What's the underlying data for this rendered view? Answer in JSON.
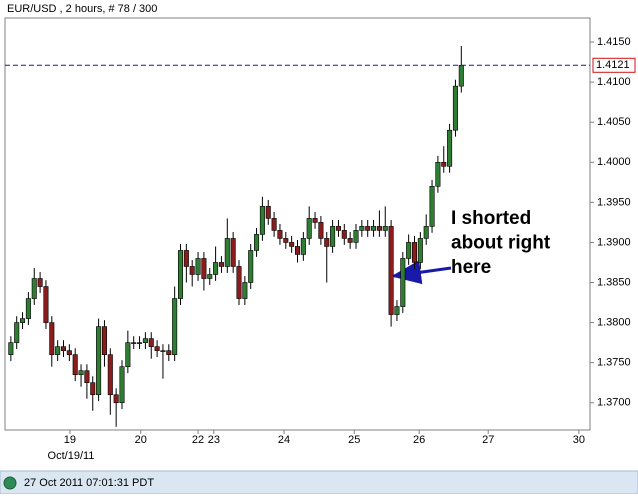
{
  "chart_data": {
    "type": "candlestick",
    "title": "EUR/USD , 2 hours, # 78 / 300",
    "open": [
      1.376,
      1.3775,
      1.38,
      1.3805,
      1.383,
      1.3855,
      1.3845,
      1.38,
      1.376,
      1.377,
      1.3765,
      1.376,
      1.3735,
      1.374,
      1.3725,
      1.371,
      1.3795,
      1.376,
      1.371,
      1.37,
      1.3745,
      1.3775,
      1.3775,
      1.3775,
      1.378,
      1.377,
      1.3765,
      1.3765,
      1.376,
      1.383,
      1.389,
      1.387,
      1.386,
      1.388,
      1.3855,
      1.386,
      1.3875,
      1.387,
      1.3905,
      1.387,
      1.383,
      1.385,
      1.389,
      1.391,
      1.3945,
      1.393,
      1.3915,
      1.3905,
      1.39,
      1.3895,
      1.3885,
      1.3905,
      1.393,
      1.3925,
      1.3905,
      1.3895,
      1.392,
      1.3915,
      1.3905,
      1.39,
      1.3915,
      1.392,
      1.3915,
      1.392,
      1.3915,
      1.392,
      1.381,
      1.382,
      1.388,
      1.39,
      1.3875,
      1.3905,
      1.392,
      1.397,
      1.4,
      1.3995,
      1.404,
      1.4095
    ],
    "high": [
      1.3783,
      1.3808,
      1.3813,
      1.3838,
      1.3868,
      1.3863,
      1.3853,
      1.3808,
      1.3778,
      1.3778,
      1.3773,
      1.3768,
      1.3748,
      1.3748,
      1.3733,
      1.3805,
      1.3803,
      1.3768,
      1.3718,
      1.3753,
      1.379,
      1.3783,
      1.3783,
      1.3788,
      1.3788,
      1.3778,
      1.3773,
      1.3773,
      1.3845,
      1.3898,
      1.3898,
      1.3878,
      1.3888,
      1.3888,
      1.3868,
      1.3895,
      1.3883,
      1.393,
      1.3913,
      1.3878,
      1.3858,
      1.3898,
      1.3918,
      1.3957,
      1.3953,
      1.3938,
      1.3923,
      1.3913,
      1.3908,
      1.3903,
      1.3913,
      1.3945,
      1.3938,
      1.3933,
      1.3913,
      1.3928,
      1.3928,
      1.3923,
      1.3913,
      1.3923,
      1.3928,
      1.3928,
      1.3928,
      1.394,
      1.3945,
      1.3928,
      1.3828,
      1.3888,
      1.391,
      1.3908,
      1.3913,
      1.3935,
      1.3978,
      1.4008,
      1.402,
      1.4048,
      1.4103,
      1.4145
    ],
    "low": [
      1.3752,
      1.3767,
      1.3792,
      1.3797,
      1.3822,
      1.3837,
      1.3792,
      1.3745,
      1.3752,
      1.3757,
      1.3752,
      1.3727,
      1.372,
      1.3705,
      1.369,
      1.3702,
      1.3745,
      1.3685,
      1.367,
      1.3692,
      1.3737,
      1.3767,
      1.3767,
      1.3767,
      1.3755,
      1.3757,
      1.373,
      1.3752,
      1.3752,
      1.3822,
      1.385,
      1.3845,
      1.3852,
      1.384,
      1.3847,
      1.3852,
      1.3862,
      1.3862,
      1.3862,
      1.3822,
      1.3822,
      1.3842,
      1.3882,
      1.3902,
      1.3922,
      1.3907,
      1.3897,
      1.3892,
      1.3887,
      1.3875,
      1.3877,
      1.3897,
      1.3917,
      1.3897,
      1.385,
      1.3887,
      1.3907,
      1.3897,
      1.3892,
      1.3892,
      1.3907,
      1.3907,
      1.3907,
      1.3907,
      1.3907,
      1.3795,
      1.3802,
      1.3812,
      1.3872,
      1.3867,
      1.3867,
      1.3897,
      1.3912,
      1.3962,
      1.3987,
      1.3987,
      1.4032,
      1.4087
    ],
    "close": [
      1.3775,
      1.38,
      1.3805,
      1.383,
      1.3855,
      1.3845,
      1.38,
      1.376,
      1.377,
      1.3765,
      1.376,
      1.3735,
      1.374,
      1.3725,
      1.371,
      1.3795,
      1.376,
      1.371,
      1.37,
      1.3745,
      1.3775,
      1.3775,
      1.3775,
      1.378,
      1.377,
      1.3765,
      1.3765,
      1.376,
      1.383,
      1.389,
      1.387,
      1.386,
      1.388,
      1.3855,
      1.386,
      1.3875,
      1.387,
      1.3905,
      1.387,
      1.383,
      1.385,
      1.389,
      1.391,
      1.3945,
      1.393,
      1.3915,
      1.3905,
      1.39,
      1.3895,
      1.3885,
      1.3905,
      1.393,
      1.3925,
      1.3905,
      1.3895,
      1.392,
      1.3915,
      1.3905,
      1.39,
      1.3915,
      1.392,
      1.3915,
      1.392,
      1.3915,
      1.392,
      1.381,
      1.382,
      1.388,
      1.39,
      1.3875,
      1.3905,
      1.392,
      1.397,
      1.4,
      1.3995,
      1.404,
      1.4095,
      1.4121
    ],
    "up_color": "#2f7d32",
    "down_color": "#8b1c1c",
    "xlim": [
      0,
      100
    ],
    "xticks": [
      {
        "value": 11.1,
        "label": "19"
      },
      {
        "value": 23.2,
        "label": "20"
      },
      {
        "value": 33.0,
        "label": "22"
      },
      {
        "value": 35.7,
        "label": "23"
      },
      {
        "value": 47.7,
        "label": "24"
      },
      {
        "value": 59.7,
        "label": "25"
      },
      {
        "value": 70.8,
        "label": "26"
      },
      {
        "value": 82.6,
        "label": "27"
      },
      {
        "value": 98.1,
        "label": "30"
      }
    ],
    "x_date_label": "Oct/19/11",
    "ylim": [
      1.3666,
      1.418
    ],
    "yticks": [
      {
        "value": 1.37,
        "label": "1.3700"
      },
      {
        "value": 1.375,
        "label": "1.3750"
      },
      {
        "value": 1.38,
        "label": "1.3800"
      },
      {
        "value": 1.385,
        "label": "1.3850"
      },
      {
        "value": 1.39,
        "label": "1.3900"
      },
      {
        "value": 1.395,
        "label": "1.3950"
      },
      {
        "value": 1.4,
        "label": "1.4000"
      },
      {
        "value": 1.405,
        "label": "1.4050"
      },
      {
        "value": 1.41,
        "label": "1.4100"
      },
      {
        "value": 1.415,
        "label": "1.4150"
      }
    ],
    "current_price": 1.4121,
    "annotation": [
      "I shorted",
      "about right",
      "here"
    ],
    "status": "27 Oct 2011 07:01:31 PDT"
  }
}
